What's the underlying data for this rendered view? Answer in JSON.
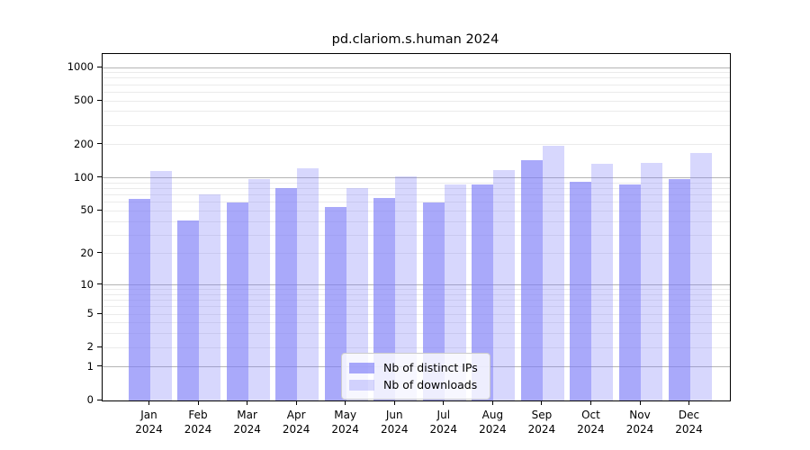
{
  "title": "pd.clariom.s.human 2024",
  "colors": {
    "bar_base": "#7c7cf7",
    "ips_fill": "rgba(124,124,247,0.66)",
    "downloads_fill": "rgba(124,124,247,0.30)",
    "grid_major": "#b4b4b4",
    "grid_minor": "#ebebeb",
    "axis": "#000000",
    "legend_border": "#cccccc"
  },
  "legend": {
    "entries": [
      "Nb of distinct IPs",
      "Nb of downloads"
    ]
  },
  "chart_data": {
    "type": "bar",
    "title": "pd.clariom.s.human 2024",
    "categories": [
      "Jan 2024",
      "Feb 2024",
      "Mar 2024",
      "Apr 2024",
      "May 2024",
      "Jun 2024",
      "Jul 2024",
      "Aug 2024",
      "Sep 2024",
      "Oct 2024",
      "Nov 2024",
      "Dec 2024"
    ],
    "series": [
      {
        "name": "Nb of distinct IPs",
        "color": "rgba(124,124,247,0.66)",
        "values": [
          64,
          41,
          60,
          81,
          54,
          66,
          60,
          88,
          145,
          92,
          88,
          98
        ]
      },
      {
        "name": "Nb of downloads",
        "color": "rgba(124,124,247,0.30)",
        "values": [
          116,
          71,
          98,
          123,
          81,
          103,
          87,
          118,
          196,
          134,
          137,
          170
        ]
      }
    ],
    "xlabel": "",
    "ylabel": "",
    "yscale": "log1p",
    "yticks": [
      0,
      1,
      2,
      5,
      10,
      20,
      50,
      100,
      200,
      500,
      1000
    ],
    "ylim": [
      0,
      1200
    ],
    "grid": "horizontal, minor log lines light, powers of 10 darker",
    "legend_position": "lower center inside plot"
  }
}
